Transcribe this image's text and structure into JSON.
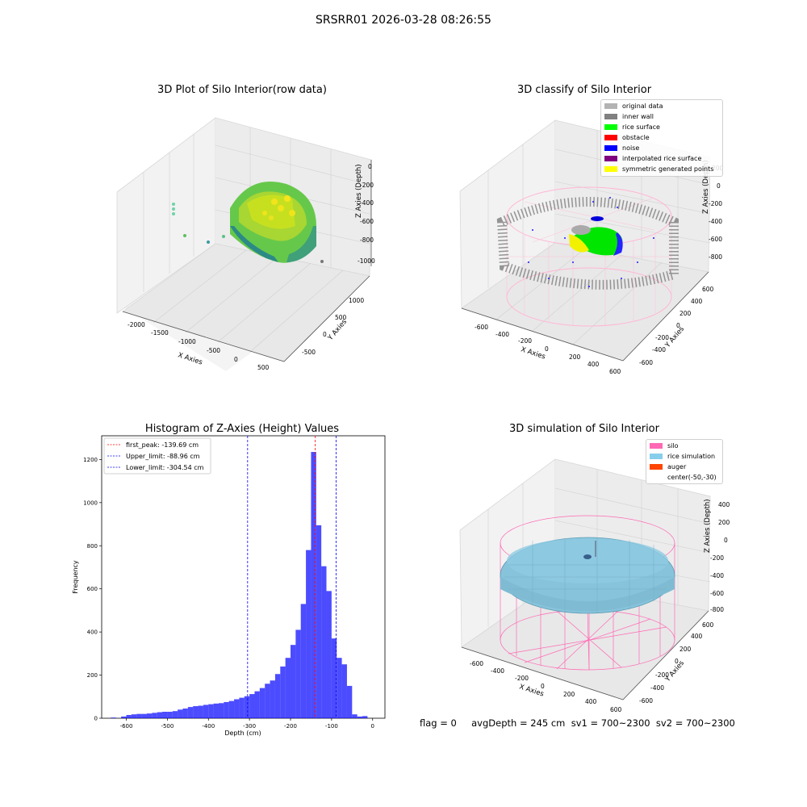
{
  "figure": {
    "suptitle": "SRSRR01 2026-03-28 08:26:55",
    "footer": "flag = 0     avgDepth = 245 cm  sv1 = 700~2300  sv2 = 700~2300"
  },
  "panels": {
    "raw": {
      "title": "3D Plot of Silo Interior(row data)",
      "xlabel": "X Axies",
      "ylabel": "Y Axies",
      "zlabel": "Z Axies (Depth)",
      "xticks": [
        "-2000",
        "-1500",
        "-1000",
        "-500",
        "0",
        "500"
      ],
      "yticks": [
        "-500",
        "0",
        "500",
        "1000"
      ],
      "zticks": [
        "0",
        "-200",
        "-400",
        "-600",
        "-800",
        "-1000"
      ]
    },
    "classify": {
      "title": "3D classify of Silo Interior",
      "xlabel": "X Axies",
      "ylabel": "Y Axies",
      "zlabel": "Z Axies (Depth)",
      "xticks": [
        "-600",
        "-400",
        "-200",
        "0",
        "200",
        "400",
        "600"
      ],
      "yticks": [
        "-600",
        "-400",
        "-200",
        "0",
        "200",
        "400",
        "600"
      ],
      "zticks": [
        "200",
        "0",
        "-200",
        "-400",
        "-600",
        "-800"
      ],
      "legend": [
        {
          "label": "original data",
          "color": "#b3b3b3"
        },
        {
          "label": "inner wall",
          "color": "#808080"
        },
        {
          "label": "rice surface",
          "color": "#00ff00"
        },
        {
          "label": "obstacle",
          "color": "#ff0000"
        },
        {
          "label": "noise",
          "color": "#0000ff"
        },
        {
          "label": "interpolated rice surface",
          "color": "#800080"
        },
        {
          "label": "symmetric generated points",
          "color": "#ffff00"
        }
      ]
    },
    "simulation": {
      "title": "3D simulation of Silo Interior",
      "xlabel": "X Axies",
      "ylabel": "Y Axies",
      "zlabel": "Z Axies (Depth)",
      "xticks": [
        "-600",
        "-400",
        "-200",
        "0",
        "200",
        "400",
        "600"
      ],
      "yticks": [
        "-600",
        "-400",
        "-200",
        "0",
        "200",
        "400",
        "600"
      ],
      "zticks": [
        "400",
        "200",
        "0",
        "-200",
        "-400",
        "-600",
        "-800"
      ],
      "legend": [
        {
          "label": "silo",
          "color": "#ff69b4"
        },
        {
          "label": "rice simulation",
          "color": "#87ceeb"
        },
        {
          "label": "auger",
          "color": "#ff4500"
        },
        {
          "label": "center(-50,-30)",
          "color": ""
        }
      ]
    }
  },
  "chart_data": {
    "type": "bar",
    "title": "Histogram of Z-Axies (Height) Values",
    "xlabel": "Depth (cm)",
    "ylabel": "Frequency",
    "xlim": [
      -660,
      30
    ],
    "ylim": [
      0,
      1310
    ],
    "xticks": [
      -600,
      -500,
      -400,
      -300,
      -200,
      -100,
      0
    ],
    "yticks": [
      0,
      200,
      400,
      600,
      800,
      1000,
      1200
    ],
    "bin_width": 12.5,
    "bin_start": -637.5,
    "values": [
      3,
      0,
      8,
      15,
      18,
      20,
      20,
      22,
      25,
      28,
      30,
      30,
      33,
      40,
      45,
      52,
      56,
      58,
      62,
      65,
      68,
      70,
      75,
      80,
      88,
      95,
      102,
      112,
      125,
      140,
      160,
      175,
      205,
      240,
      280,
      340,
      410,
      530,
      780,
      1235,
      895,
      705,
      590,
      370,
      280,
      250,
      150,
      18,
      8,
      10
    ],
    "color": "#0000ff",
    "lines": [
      {
        "label": "first_peak: -139.69 cm",
        "x": -139.69,
        "color": "#ff0000"
      },
      {
        "label": "Upper_limit: -88.96 cm",
        "x": -88.96,
        "color": "#0000ff"
      },
      {
        "label": "Lower_limit: -304.54 cm",
        "x": -304.54,
        "color": "#0000ff"
      }
    ],
    "legend_position": "top-left"
  }
}
